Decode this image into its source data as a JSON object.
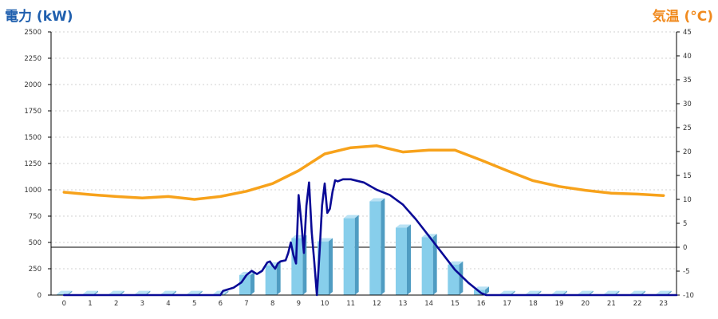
{
  "chart_data": {
    "type": "bar",
    "y_left_label": "電力 (kW)",
    "y_right_label": "気温 (°C)",
    "y_left_ticks": [
      0,
      250,
      500,
      750,
      1000,
      1250,
      1500,
      1750,
      2000,
      2250,
      2500
    ],
    "y_right_ticks": [
      -10,
      -5,
      0,
      5,
      10,
      15,
      20,
      25,
      30,
      35,
      40,
      45
    ],
    "y_left_range": [
      0,
      2500
    ],
    "y_right_range": [
      -10,
      45
    ],
    "x_categories": [
      "0",
      "1",
      "2",
      "3",
      "4",
      "5",
      "6",
      "7",
      "8",
      "9",
      "10",
      "11",
      "12",
      "13",
      "14",
      "15",
      "16",
      "17",
      "18",
      "19",
      "20",
      "21",
      "22",
      "23"
    ],
    "grid": "horizontal dotted",
    "series": [
      {
        "kind": "bar",
        "axis": "left",
        "color": "#87ceeb",
        "values": [
          10,
          10,
          10,
          10,
          10,
          10,
          10,
          190,
          280,
          540,
          510,
          730,
          890,
          640,
          550,
          290,
          50,
          10,
          10,
          10,
          10,
          10,
          10,
          10
        ]
      },
      {
        "kind": "line",
        "axis": "left",
        "color": "#0a0a96",
        "points": [
          [
            0,
            0
          ],
          [
            6,
            0
          ],
          [
            6.1,
            40
          ],
          [
            6.5,
            70
          ],
          [
            6.8,
            120
          ],
          [
            7.0,
            190
          ],
          [
            7.2,
            230
          ],
          [
            7.4,
            200
          ],
          [
            7.6,
            230
          ],
          [
            7.8,
            310
          ],
          [
            7.9,
            320
          ],
          [
            8.0,
            280
          ],
          [
            8.1,
            250
          ],
          [
            8.2,
            300
          ],
          [
            8.3,
            320
          ],
          [
            8.5,
            330
          ],
          [
            8.6,
            400
          ],
          [
            8.7,
            500
          ],
          [
            8.8,
            380
          ],
          [
            8.9,
            300
          ],
          [
            9.0,
            950
          ],
          [
            9.1,
            700
          ],
          [
            9.2,
            400
          ],
          [
            9.3,
            850
          ],
          [
            9.4,
            1070
          ],
          [
            9.5,
            600
          ],
          [
            9.6,
            320
          ],
          [
            9.7,
            0
          ],
          [
            9.8,
            400
          ],
          [
            9.9,
            850
          ],
          [
            10.0,
            1060
          ],
          [
            10.1,
            780
          ],
          [
            10.2,
            820
          ],
          [
            10.3,
            980
          ],
          [
            10.4,
            1090
          ],
          [
            10.5,
            1080
          ],
          [
            10.7,
            1100
          ],
          [
            11.0,
            1100
          ],
          [
            11.5,
            1070
          ],
          [
            12.0,
            1000
          ],
          [
            12.5,
            950
          ],
          [
            13.0,
            860
          ],
          [
            13.5,
            720
          ],
          [
            14.0,
            560
          ],
          [
            14.5,
            400
          ],
          [
            15.0,
            240
          ],
          [
            15.5,
            120
          ],
          [
            16.0,
            20
          ],
          [
            16.2,
            0
          ],
          [
            23.5,
            0
          ]
        ]
      },
      {
        "kind": "line",
        "axis": "right",
        "color": "#f7a21b",
        "points": [
          [
            0,
            11.5
          ],
          [
            1,
            11.0
          ],
          [
            2,
            10.6
          ],
          [
            3,
            10.3
          ],
          [
            4,
            10.6
          ],
          [
            5,
            10.0
          ],
          [
            6,
            10.6
          ],
          [
            7,
            11.7
          ],
          [
            8,
            13.3
          ],
          [
            9,
            16.0
          ],
          [
            10,
            19.5
          ],
          [
            11,
            20.8
          ],
          [
            12,
            21.2
          ],
          [
            13,
            19.9
          ],
          [
            14,
            20.3
          ],
          [
            15,
            20.3
          ],
          [
            16,
            18.2
          ],
          [
            17,
            16.0
          ],
          [
            18,
            13.9
          ],
          [
            19,
            12.7
          ],
          [
            20,
            11.9
          ],
          [
            21,
            11.3
          ],
          [
            22,
            11.1
          ],
          [
            23,
            10.8
          ]
        ]
      }
    ]
  }
}
